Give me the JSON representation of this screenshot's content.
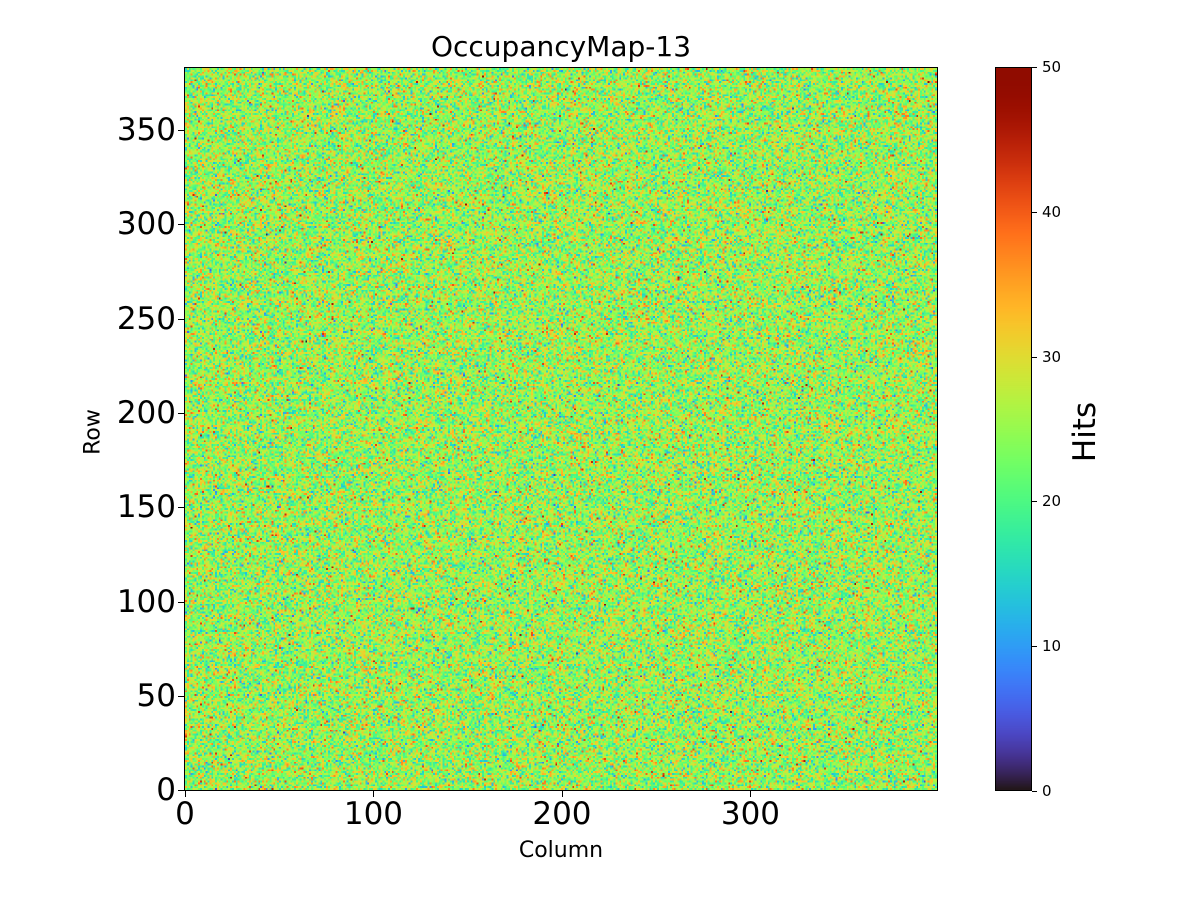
{
  "chart_data": {
    "type": "heatmap",
    "title": "OccupancyMap-13",
    "xlabel": "Column",
    "ylabel": "Row",
    "colorbar_label": "Hits",
    "colormap": "turbo",
    "n_columns": 400,
    "n_rows": 384,
    "xlim": [
      -0.5,
      399.5
    ],
    "ylim": [
      -0.5,
      383.5
    ],
    "clim": [
      0,
      50
    ],
    "x_ticks": [
      0,
      100,
      200,
      300
    ],
    "x_tick_labels": [
      "0",
      "100",
      "200",
      "300"
    ],
    "y_ticks": [
      0,
      50,
      100,
      150,
      200,
      250,
      300,
      350
    ],
    "y_tick_labels": [
      "0",
      "50",
      "100",
      "150",
      "200",
      "250",
      "300",
      "350"
    ],
    "colorbar_ticks": [
      0,
      10,
      20,
      30,
      40,
      50
    ],
    "colorbar_tick_labels": [
      "0",
      "10",
      "20",
      "30",
      "40",
      "50"
    ],
    "distribution": {
      "kind": "random noise",
      "mean": 25,
      "std": 6
    }
  }
}
